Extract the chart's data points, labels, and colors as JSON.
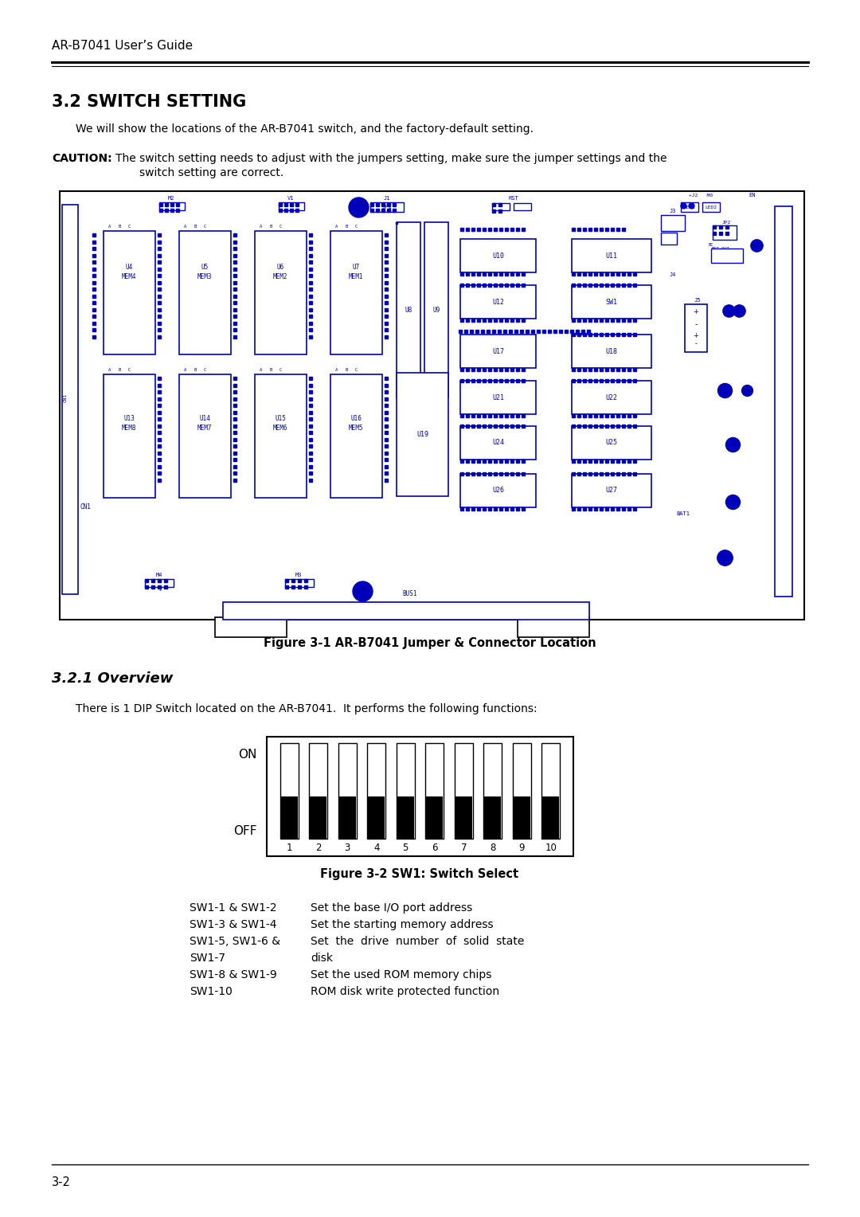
{
  "page_title": "AR-B7041 User’s Guide",
  "section_title": "3.2 SWITCH SETTING",
  "section_body": "We will show the locations of the AR-B7041 switch, and the factory-default setting.",
  "caution_label": "CAUTION:",
  "caution_text": " The switch setting needs to adjust with the jumpers setting, make sure the jumper settings and the\n              switch setting are correct.",
  "fig1_caption": "Figure 3-1 AR-B7041 Jumper & Connector Location",
  "section2_title": "3.2.1 Overview",
  "section2_body": "There is 1 DIP Switch located on the AR-B7041.  It performs the following functions:",
  "switch_on_label": "ON",
  "switch_off_label": "OFF",
  "switch_numbers": [
    "1",
    "2",
    "3",
    "4",
    "5",
    "6",
    "7",
    "8",
    "9",
    "10"
  ],
  "fig2_caption": "Figure 3-2 SW1: Switch Select",
  "sw_table": [
    [
      "SW1-1 & SW1-2",
      "Set the base I/O port address"
    ],
    [
      "SW1-3 & SW1-4",
      "Set the starting memory address"
    ],
    [
      "SW1-5, SW1-6 & SW1-7",
      "Set  the  drive  number  of  solid  state\n                    disk"
    ],
    [
      "SW1-8 & SW1-9",
      "Set the used ROM memory chips"
    ],
    [
      "SW1-10",
      "ROM disk write protected function"
    ]
  ],
  "page_number": "3-2",
  "bg_color": "#ffffff",
  "text_color": "#000000",
  "blue_color": "#0000bb"
}
